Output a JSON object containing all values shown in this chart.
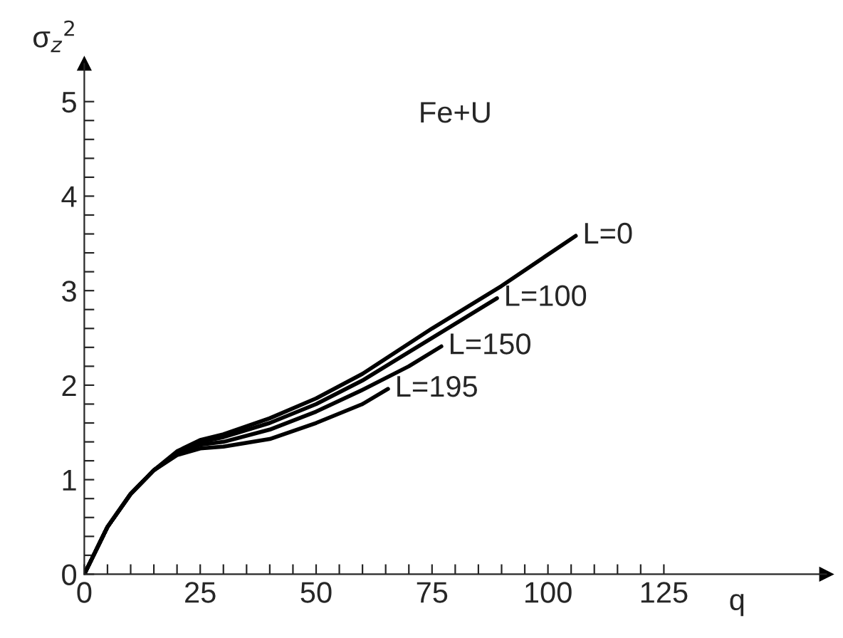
{
  "chart_data": {
    "type": "line",
    "title": "Fe+U",
    "xlabel": "q",
    "ylabel": "σ$_{z}$$^{2}$",
    "xlim": [
      0,
      160
    ],
    "ylim": [
      0,
      5.4
    ],
    "legend": false,
    "grid": false,
    "marker": "none",
    "line_style": "solid",
    "xticks": [
      0,
      {
        "value": 5,
        "label": null
      },
      {
        "value": 10,
        "label": null
      },
      {
        "value": 15,
        "label": null
      },
      {
        "value": 20,
        "label": null
      },
      25,
      {
        "value": 30,
        "label": null
      },
      {
        "value": 35,
        "label": null
      },
      {
        "value": 40,
        "label": null
      },
      {
        "value": 45,
        "label": null
      },
      50,
      {
        "value": 55,
        "label": null
      },
      {
        "value": 60,
        "label": null
      },
      {
        "value": 65,
        "label": null
      },
      {
        "value": 70,
        "label": null
      },
      75,
      {
        "value": 80,
        "label": null
      },
      {
        "value": 85,
        "label": null
      },
      {
        "value": 90,
        "label": null
      },
      {
        "value": 95,
        "label": null
      },
      100,
      {
        "value": 105,
        "label": null
      },
      {
        "value": 110,
        "label": null
      },
      {
        "value": 115,
        "label": null
      },
      {
        "value": 120,
        "label": null
      },
      125
    ],
    "yticks": [
      0,
      {
        "value": 0.2,
        "label": null
      },
      {
        "value": 0.4,
        "label": null
      },
      {
        "value": 0.6,
        "label": null
      },
      {
        "value": 0.8,
        "label": null
      },
      1,
      {
        "value": 1.2,
        "label": null
      },
      {
        "value": 1.4,
        "label": null
      },
      {
        "value": 1.6,
        "label": null
      },
      {
        "value": 1.8,
        "label": null
      },
      2,
      {
        "value": 2.2,
        "label": null
      },
      {
        "value": 2.4,
        "label": null
      },
      {
        "value": 2.6,
        "label": null
      },
      {
        "value": 2.8,
        "label": null
      },
      3,
      {
        "value": 3.2,
        "label": null
      },
      {
        "value": 3.4,
        "label": null
      },
      {
        "value": 3.6,
        "label": null
      },
      {
        "value": 3.8,
        "label": null
      },
      4,
      {
        "value": 4.2,
        "label": null
      },
      {
        "value": 4.4,
        "label": null
      },
      {
        "value": 4.6,
        "label": null
      },
      {
        "value": 4.8,
        "label": null
      },
      5
    ],
    "series": [
      {
        "name": "L=0",
        "color": "#000000",
        "x": [
          0,
          2,
          5,
          10,
          15,
          20,
          25,
          30,
          40,
          50,
          60,
          75,
          90,
          106
        ],
        "values": [
          0,
          0.2,
          0.5,
          0.85,
          1.1,
          1.3,
          1.42,
          1.48,
          1.65,
          1.86,
          2.12,
          2.6,
          3.05,
          3.58
        ]
      },
      {
        "name": "L=100",
        "color": "#000000",
        "x": [
          0,
          2,
          5,
          10,
          15,
          20,
          25,
          30,
          40,
          50,
          60,
          75,
          89
        ],
        "values": [
          0,
          0.2,
          0.5,
          0.85,
          1.1,
          1.28,
          1.4,
          1.45,
          1.6,
          1.8,
          2.05,
          2.5,
          2.92
        ]
      },
      {
        "name": "L=150",
        "color": "#000000",
        "x": [
          0,
          2,
          5,
          10,
          15,
          20,
          25,
          30,
          40,
          50,
          60,
          70,
          77
        ],
        "values": [
          0,
          0.2,
          0.5,
          0.85,
          1.1,
          1.27,
          1.37,
          1.4,
          1.53,
          1.72,
          1.95,
          2.2,
          2.41
        ]
      },
      {
        "name": "L=195",
        "color": "#000000",
        "x": [
          0,
          2,
          5,
          10,
          15,
          20,
          25,
          30,
          40,
          50,
          60,
          65.5
        ],
        "values": [
          0,
          0.2,
          0.5,
          0.85,
          1.1,
          1.26,
          1.33,
          1.35,
          1.43,
          1.6,
          1.8,
          1.96
        ]
      }
    ]
  }
}
